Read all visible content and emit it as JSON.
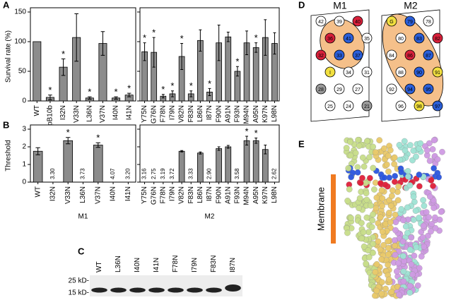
{
  "panel_letters": [
    "A",
    "B",
    "C",
    "D",
    "E"
  ],
  "chart_data": [
    {
      "type": "bar",
      "y_label": "Survival rate (%)",
      "categories": [
        "WT",
        "pB10b",
        "I32N",
        "V33N",
        "L36N",
        "V37N",
        "I40N",
        "I41N"
      ],
      "values": [
        100,
        6,
        57,
        107,
        5,
        97,
        5,
        10
      ],
      "errors": [
        null,
        4,
        14,
        40,
        2,
        20,
        2,
        3
      ],
      "significance": [
        null,
        "*",
        "*",
        null,
        "*",
        null,
        "*",
        "*"
      ],
      "color": "#8c8c8c",
      "ylim": [
        0,
        150
      ],
      "yticks": [
        0,
        50,
        100,
        150
      ],
      "ytick_labels": true
    },
    {
      "type": "bar",
      "categories": [
        "Y75N",
        "G76N",
        "F78N",
        "I79N",
        "V82N",
        "F83N",
        "L86N",
        "I87N",
        "F90N",
        "A91N",
        "F93N",
        "M94N",
        "A95N",
        "K97N",
        "L98N"
      ],
      "values": [
        83,
        82,
        8,
        12,
        75,
        12,
        102,
        15,
        98,
        108,
        50,
        98,
        90,
        107,
        97
      ],
      "errors": [
        15,
        25,
        3,
        5,
        22,
        5,
        18,
        6,
        30,
        8,
        8,
        20,
        8,
        30,
        18
      ],
      "significance": [
        "*",
        "*",
        "*",
        "*",
        "*",
        "*",
        null,
        "*",
        null,
        null,
        "*",
        null,
        "*",
        null,
        null
      ],
      "color": "#8c8c8c",
      "ylim": [
        0,
        150
      ],
      "yticks": [
        0,
        50,
        100,
        150
      ],
      "ytick_labels": false
    },
    {
      "type": "bar",
      "y_label": "Threshold",
      "x_label": "M1",
      "categories": [
        "WT",
        "I32N",
        "V33N",
        "L36N",
        "V37N",
        "I40N",
        "I41N"
      ],
      "values": [
        1.75,
        null,
        2.35,
        null,
        2.1,
        null,
        null
      ],
      "errors": [
        0.2,
        null,
        0.18,
        null,
        0.13,
        null,
        null
      ],
      "notes": [
        null,
        "3.30",
        null,
        "3.73",
        null,
        "4.07",
        "3.20"
      ],
      "significance": [
        null,
        null,
        "*",
        null,
        "*",
        null,
        null
      ],
      "color": "#8c8c8c",
      "ylim": [
        0,
        3
      ],
      "yticks": [
        0,
        1,
        2,
        3
      ],
      "ytick_labels": true
    },
    {
      "type": "bar",
      "x_label": "M2",
      "categories": [
        "Y75N",
        "G76N",
        "F78N",
        "I79N",
        "V82N",
        "F83N",
        "L86N",
        "I87N",
        "F90N",
        "A91N",
        "F93N",
        "M94N",
        "A95N",
        "K97N",
        "L98N"
      ],
      "values": [
        null,
        null,
        null,
        null,
        1.75,
        null,
        1.65,
        null,
        1.9,
        2.0,
        null,
        2.35,
        2.35,
        1.85,
        null
      ],
      "errors": [
        null,
        null,
        null,
        null,
        0.04,
        null,
        0.06,
        null,
        0.1,
        0.08,
        null,
        0.25,
        0.15,
        0.25,
        null
      ],
      "notes": [
        "3.16",
        "2.75",
        "3.19",
        "3.72",
        null,
        "3.33",
        null,
        "2.90",
        null,
        null,
        "3.58",
        null,
        null,
        null,
        "2.62"
      ],
      "significance": [
        null,
        null,
        null,
        null,
        null,
        null,
        null,
        null,
        null,
        null,
        null,
        "*",
        "*",
        null,
        null
      ],
      "color": "#8c8c8c",
      "ylim": [
        0,
        3
      ],
      "yticks": [
        0,
        1,
        2,
        3
      ],
      "ytick_labels": false
    }
  ],
  "blot": {
    "lanes": [
      "WT",
      "L36N",
      "I40N",
      "I41N",
      "F78N",
      "I79N",
      "F83N",
      "I87N"
    ],
    "markers": [
      "25 kD-",
      "15 kD-"
    ]
  },
  "wheels": [
    {
      "title": "M1",
      "residues": [
        {
          "label": "42",
          "color": "#ffffff"
        },
        {
          "label": "39",
          "color": "#ffffff"
        },
        {
          "label": "40",
          "color": "#d8203a"
        },
        {
          "label": "36",
          "color": "#d8203a"
        },
        {
          "label": "41",
          "color": "#2b5fd9"
        },
        {
          "label": "35",
          "color": "#ffffff"
        },
        {
          "label": "32",
          "color": "#d8203a"
        },
        {
          "label": "33",
          "color": "#2b5fd9"
        },
        {
          "label": "37",
          "color": "#2b5fd9"
        },
        {
          "label": "I",
          "color": "#f2e040"
        },
        {
          "label": "34",
          "color": "#ffffff"
        },
        {
          "label": "31",
          "color": "#ffffff"
        },
        {
          "label": "28",
          "color": "#999999"
        },
        {
          "label": "29",
          "color": "#ffffff"
        },
        {
          "label": "27",
          "color": "#ffffff"
        },
        {
          "label": "25",
          "color": "#ffffff"
        },
        {
          "label": "24",
          "color": "#ffffff"
        },
        {
          "label": "21",
          "color": "#999999"
        }
      ]
    },
    {
      "title": "M2",
      "residues": [
        {
          "label": "G",
          "color": "#f2e040"
        },
        {
          "label": "79",
          "color": "#2b5fd9"
        },
        {
          "label": "78",
          "color": "#ffffff"
        },
        {
          "label": "80",
          "color": "#ffffff"
        },
        {
          "label": "83",
          "color": "#2b5fd9"
        },
        {
          "label": "82",
          "color": "#d8203a"
        },
        {
          "label": "84",
          "color": "#ffffff"
        },
        {
          "label": "86",
          "color": "#d8203a"
        },
        {
          "label": "87",
          "color": "#2b5fd9"
        },
        {
          "label": "88",
          "color": "#ffffff"
        },
        {
          "label": "90",
          "color": "#2b5fd9"
        },
        {
          "label": "91",
          "color": "#f2e040"
        },
        {
          "label": "92",
          "color": "#ffffff"
        },
        {
          "label": "94",
          "color": "#2b5fd9"
        },
        {
          "label": "95",
          "color": "#2b5fd9"
        },
        {
          "label": "96",
          "color": "#ffffff"
        },
        {
          "label": "98",
          "color": "#f2e040"
        },
        {
          "label": "97",
          "color": "#2b5fd9"
        }
      ]
    }
  ],
  "structure": {
    "label": "Membrane"
  }
}
